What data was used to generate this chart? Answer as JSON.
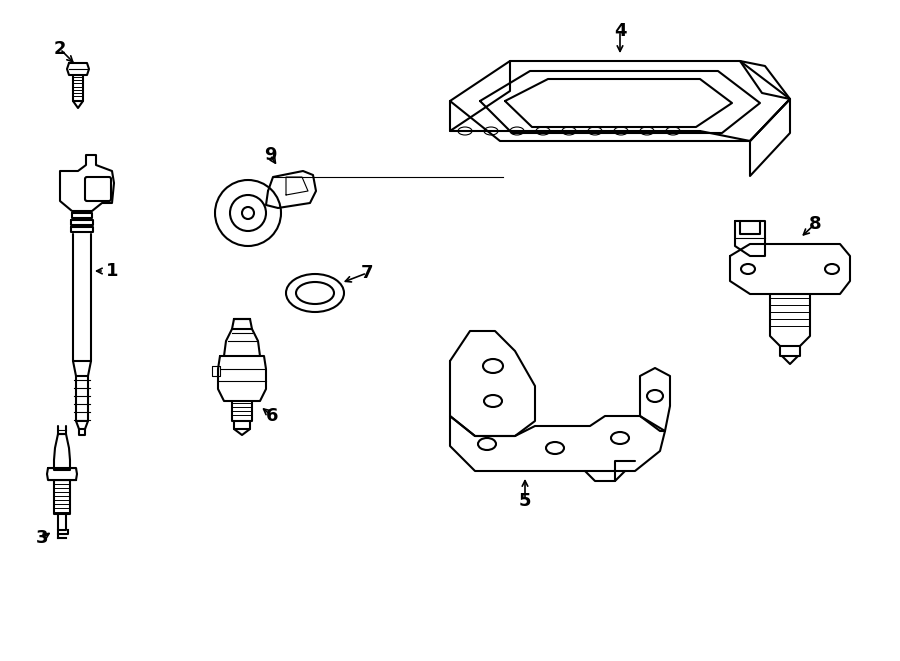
{
  "background_color": "#ffffff",
  "line_color": "#000000",
  "line_width": 1.5,
  "fig_w": 9.0,
  "fig_h": 6.61,
  "dpi": 100
}
